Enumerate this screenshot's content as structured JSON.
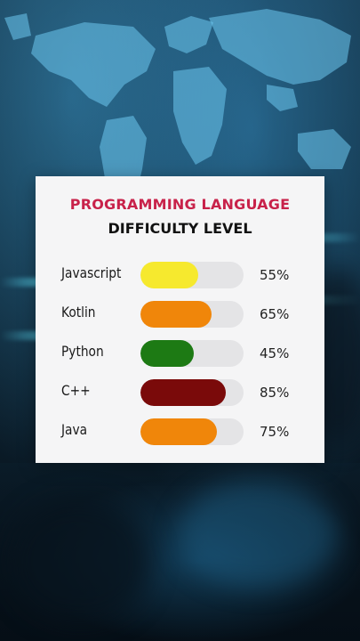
{
  "card": {
    "title": "PROGRAMMING LANGUAGE",
    "subtitle": "DIFFICULTY LEVEL",
    "title_color": "#c8224a"
  },
  "chart_data": {
    "type": "bar",
    "title": "PROGRAMMING LANGUAGE DIFFICULTY LEVEL",
    "categories": [
      "Javascript",
      "Kotlin",
      "Python",
      "C++",
      "Java"
    ],
    "values": [
      55,
      65,
      45,
      85,
      75
    ],
    "labels": [
      "55%",
      "65%",
      "45%",
      "85%",
      "75%"
    ],
    "colors": [
      "#f6e92e",
      "#f0860a",
      "#1d7a14",
      "#7a0a0a",
      "#f0860a"
    ],
    "ylim": [
      0,
      100
    ]
  }
}
